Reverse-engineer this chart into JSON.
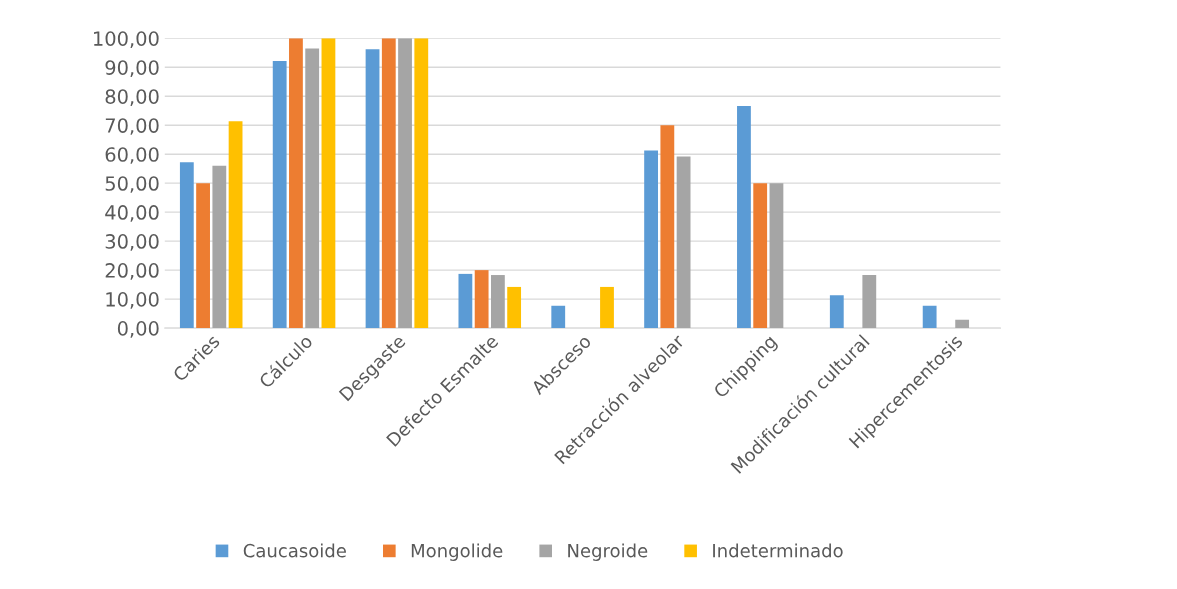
{
  "chart_data": {
    "type": "bar",
    "categories": [
      "Caries",
      "Cálculo",
      "Desgaste",
      "Defecto Esmalte",
      "Absceso",
      "Retracción alveolar",
      "Chipping",
      "Modificación cultural",
      "Hipercementosis"
    ],
    "series": [
      {
        "name": "Caucasoide",
        "color": "#5b9bd5",
        "values": [
          57.2,
          92.2,
          96.2,
          18.7,
          7.7,
          61.3,
          76.6,
          11.3,
          7.7
        ]
      },
      {
        "name": "Mongolide",
        "color": "#ed7d31",
        "values": [
          50,
          100,
          100,
          20,
          null,
          70,
          50,
          null,
          null
        ]
      },
      {
        "name": "Negroide",
        "color": "#a5a5a5",
        "values": [
          56,
          96.5,
          100,
          18.3,
          null,
          59.2,
          50,
          18.3,
          2.9
        ]
      },
      {
        "name": "Indeterminado",
        "color": "#ffc000",
        "values": [
          71.4,
          100,
          100,
          14.2,
          14.2,
          null,
          null,
          null,
          null
        ]
      }
    ],
    "ylim": [
      0,
      100
    ],
    "yticks": [
      {
        "value": 0,
        "label": "0,00"
      },
      {
        "value": 10,
        "label": "10,00"
      },
      {
        "value": 20,
        "label": "20,00"
      },
      {
        "value": 30,
        "label": "30,00"
      },
      {
        "value": 40,
        "label": "40,00"
      },
      {
        "value": 50,
        "label": "50,00"
      },
      {
        "value": 60,
        "label": "60,00"
      },
      {
        "value": 70,
        "label": "70,00"
      },
      {
        "value": 80,
        "label": "80,00"
      },
      {
        "value": 90,
        "label": "90,00"
      },
      {
        "value": 100,
        "label": "100,00"
      }
    ],
    "grid": "y",
    "legend": "bottom"
  }
}
